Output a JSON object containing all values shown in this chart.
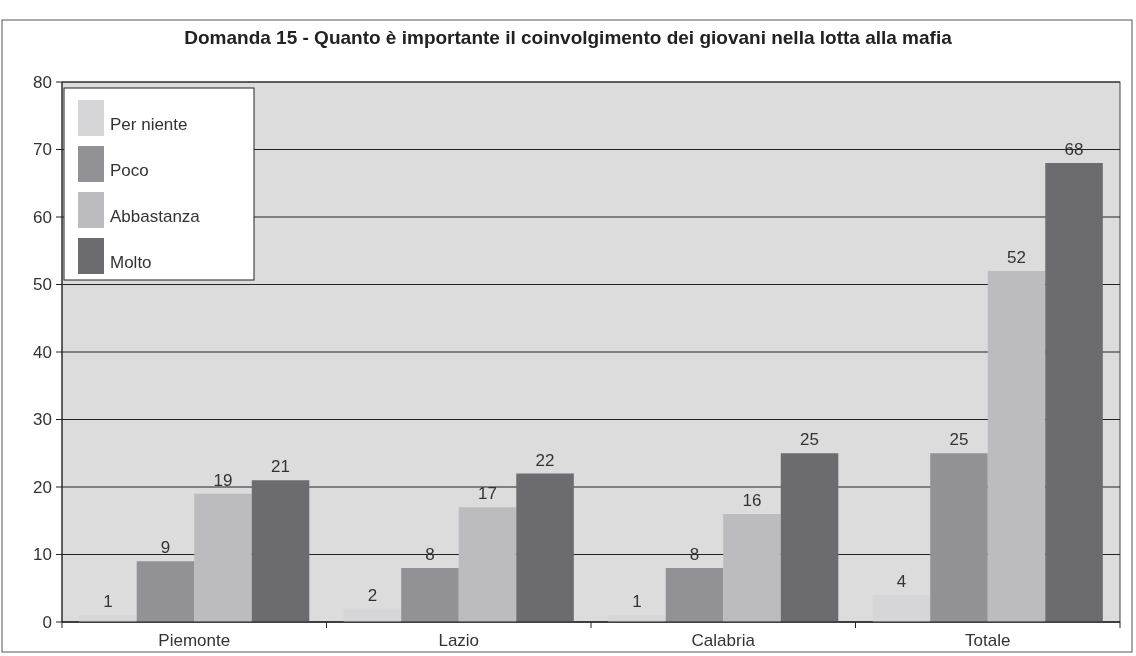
{
  "chart_data": {
    "type": "bar",
    "title": "Domanda 15 - Quanto è importante il coinvolgimento dei giovani nella lotta alla mafia",
    "categories": [
      "Piemonte",
      "Lazio",
      "Calabria",
      "Totale"
    ],
    "series": [
      {
        "name": "Per niente",
        "color": "#d6d6d8",
        "values": [
          1,
          2,
          1,
          4
        ]
      },
      {
        "name": "Poco",
        "color": "#929296",
        "values": [
          9,
          8,
          8,
          25
        ]
      },
      {
        "name": "Abbastanza",
        "color": "#bcbcc0",
        "values": [
          19,
          17,
          16,
          52
        ]
      },
      {
        "name": "Molto",
        "color": "#6c6c70",
        "values": [
          21,
          22,
          25,
          68
        ]
      }
    ],
    "ylim": [
      0,
      80
    ],
    "yticks": [
      0,
      10,
      20,
      30,
      40,
      50,
      60,
      70,
      80
    ],
    "grid": "y",
    "legend": "top left",
    "data_labels": true
  }
}
